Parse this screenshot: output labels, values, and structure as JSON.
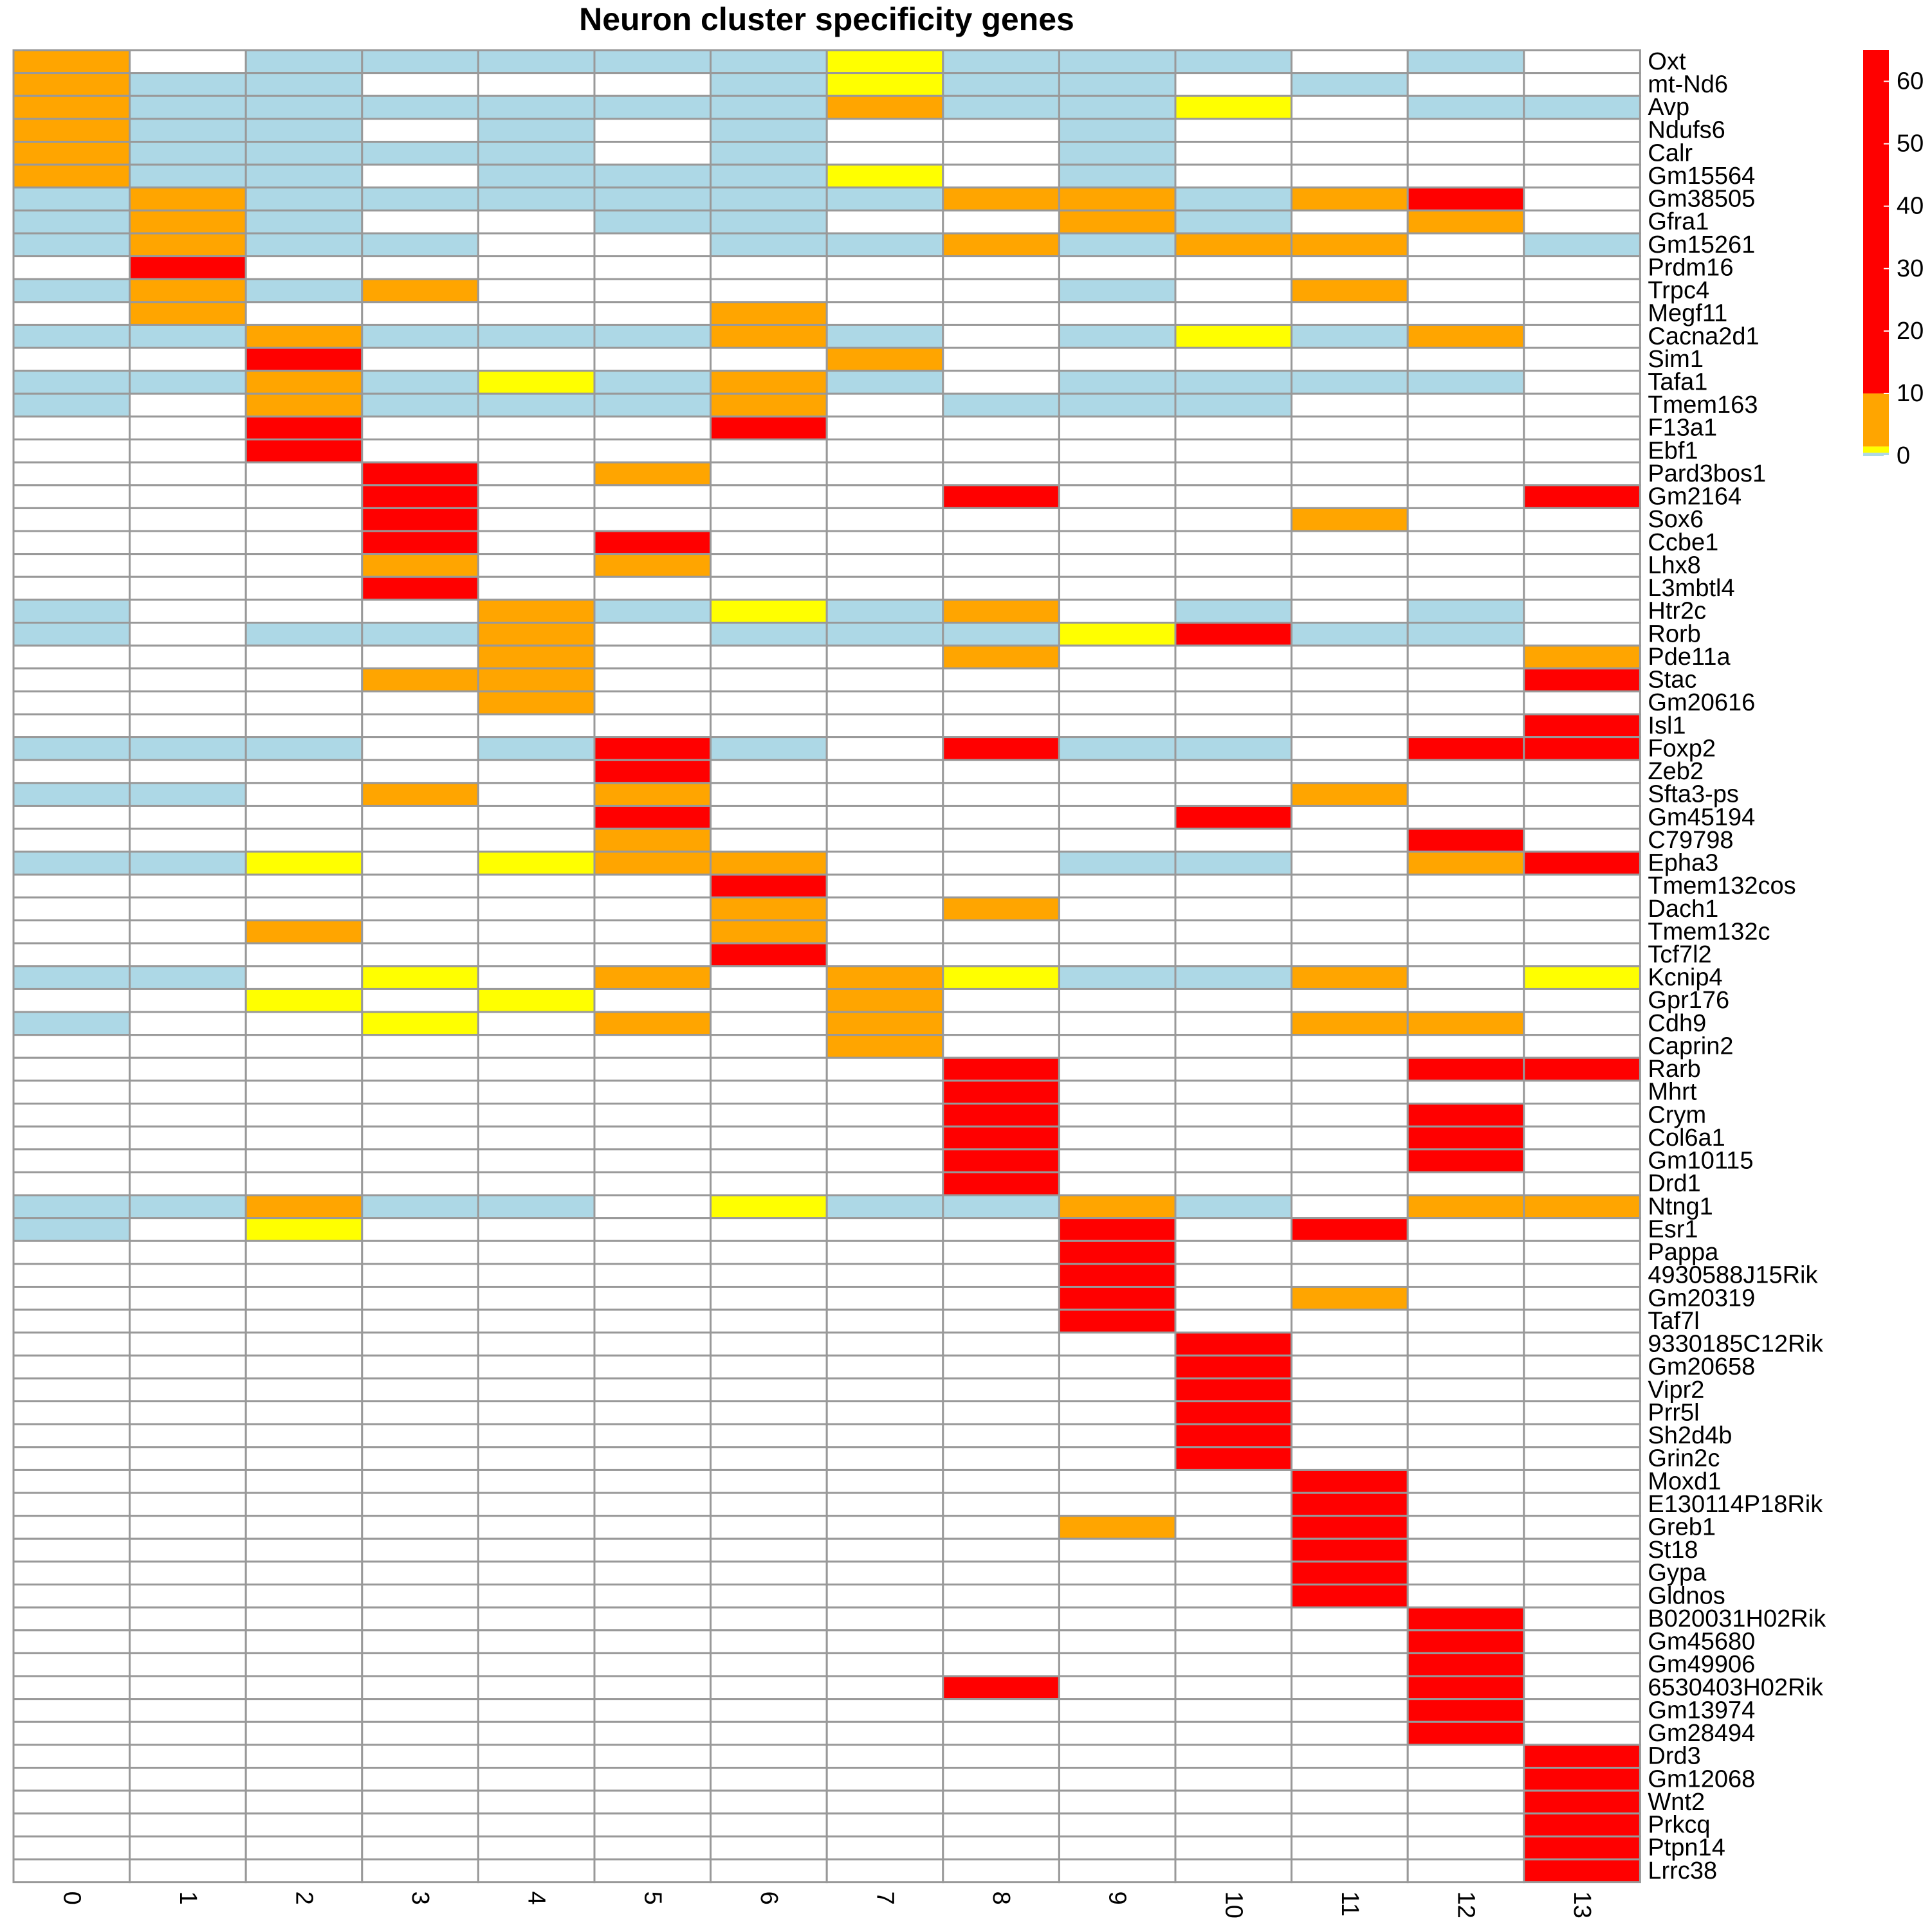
{
  "chart_data": {
    "type": "heatmap",
    "title": "Neuron cluster specificity genes",
    "columns": [
      "0",
      "1",
      "2",
      "3",
      "4",
      "5",
      "6",
      "7",
      "8",
      "9",
      "10",
      "11",
      "12",
      "13"
    ],
    "rows": [
      "Oxt",
      "mt-Nd6",
      "Avp",
      "Ndufs6",
      "Calr",
      "Gm15564",
      "Gm38505",
      "Gfra1",
      "Gm15261",
      "Prdm16",
      "Trpc4",
      "Megf11",
      "Cacna2d1",
      "Sim1",
      "Tafa1",
      "Tmem163",
      "F13a1",
      "Ebf1",
      "Pard3bos1",
      "Gm2164",
      "Sox6",
      "Ccbe1",
      "Lhx8",
      "L3mbtl4",
      "Htr2c",
      "Rorb",
      "Pde11a",
      "Stac",
      "Gm20616",
      "Isl1",
      "Foxp2",
      "Zeb2",
      "Sfta3-ps",
      "Gm45194",
      "C79798",
      "Epha3",
      "Tmem132cos",
      "Dach1",
      "Tmem132c",
      "Tcf7l2",
      "Kcnip4",
      "Gpr176",
      "Cdh9",
      "Caprin2",
      "Rarb",
      "Mhrt",
      "Crym",
      "Col6a1",
      "Gm10115",
      "Drd1",
      "Ntng1",
      "Esr1",
      "Pappa",
      "4930588J15Rik",
      "Gm20319",
      "Taf7l",
      "9330185C12Rik",
      "Gm20658",
      "Vipr2",
      "Prr5l",
      "Sh2d4b",
      "Grin2c",
      "Moxd1",
      "E130114P18Rik",
      "Greb1",
      "St18",
      "Gypa",
      "Gldnos",
      "B020031H02Rik",
      "Gm45680",
      "Gm49906",
      "6530403H02Rik",
      "Gm13974",
      "Gm28494",
      "Drd3",
      "Gm12068",
      "Wnt2",
      "Prkcq",
      "Ptpn14",
      "Lrrc38"
    ],
    "cell_codes_legend": {
      "w": "white (no value)",
      "b": "light blue (~0)",
      "y": "yellow (~1)",
      "o": "orange (1-10)",
      "r": "red (10-65)"
    },
    "cells": [
      "owbbbbbybbbwbw",
      "obbwwwbybbwbww",
      "obbbbbbobbywbb",
      "obbwbwbwwbwwww",
      "obbbbwbwwbwwww",
      "obbwbbbywbwwww",
      "bobbbbbboobord",
      "bobwwbbwwobwow",
      "bobbwwbboboowb",
      "wrwwwwwwwwwwww",
      "bobowwwwwbwoww",
      "wowwwwowwwwwww",
      "bbobbbobwbybow",
      "wwrwwwwowwwwww",
      "bbobybobwbbbbw",
      "bwobbbowbbbwww",
      "wwrwwwrwwwwwww",
      "wwrwwwwwwwwwww",
      "wwwrwowwwwwwww",
      "wwwrwwwwrwwwwr",
      "wwwrwwwwwwwoww",
      "wwwrwrwwwwwwww",
      "wwwowowwwwwwww",
      "wwwrwwwwwwwwww",
      "bwwwobybowbwbw",
      "bwbbowbbbyrbbw",
      "wwwwowwwowwwwo",
      "wwwoowwwwwwwwr",
      "wwwwowwwwwwwww",
      "wwwwwwwwwwwwwr",
      "bbbwbrbwrbbwrr",
      "wwwwwrwwwwwwww",
      "bbwowowwwwwoww",
      "wwwwwrwwwwrwww",
      "wwwwwowwwwwwrw",
      "bbywyoowwbbwor",
      "wwwwwwrwwwwwww",
      "wwwwwwowowwwww",
      "wwowwwowwwwwww",
      "wwwwwwrwwwwwww",
      "bbwywowoybbowy",
      "wwywywwowwwwww",
      "bwwywowowwwoow",
      "wwwwwwwowwwwww",
      "wwwwwwwwrwwwrr",
      "wwwwwwwwrwwwww",
      "wwwwwwwwrwwwrw",
      "wwwwwwwwrwwwrw",
      "wwwwwwwwrwwwrw",
      "wwwwwwwwrwwwww",
      "bbobbwybbobwoo",
      "bwywwwwwwrwrww",
      "wwwwwwwwwrwwww",
      "wwwwwwwwwrwwww",
      "wwwwwwwwwrwoww",
      "wwwwwwwwwrwwww",
      "wwwwwwwwwwrwww",
      "wwwwwwwwwwrwww",
      "wwwwwwwwwwrwww",
      "wwwwwwwwwwrwww",
      "wwwwwwwwwwrwww",
      "wwwwwwwwwwrwww",
      "wwwwwwwwwwwrww",
      "wwwwwwwwwwwrww",
      "wwwwwwwwwowrww",
      "wwwwwwwwwwwrww",
      "wwwwwwwwwwwrww",
      "wwwwwwwwwwwrww",
      "wwwwwwwwwwwwrw",
      "wwwwwwwwwwwwrw",
      "wwwwwwwwwwwwrw",
      "wwwwwwwwrwwwrw",
      "wwwwwwwwwwwwrw",
      "wwwwwwwwwwwwrw",
      "wwwwwwwwwwwwwr",
      "wwwwwwwwwwwwwr",
      "wwwwwwwwwwwwwr",
      "wwwwwwwwwwwwwr",
      "wwwwwwwwwwwwwr",
      "wwwwwwwwwwwwwr"
    ],
    "colorbar": {
      "ticks": [
        0,
        10,
        20,
        30,
        40,
        50,
        60
      ],
      "range": [
        0,
        65
      ],
      "bands": [
        {
          "from": 0,
          "to": 0.5,
          "color": "#add8e6"
        },
        {
          "from": 0.5,
          "to": 1.5,
          "color": "#ffff00"
        },
        {
          "from": 1.5,
          "to": 10,
          "color": "#ffa500"
        },
        {
          "from": 10,
          "to": 65,
          "color": "#ff0000"
        }
      ]
    },
    "colors": {
      "w": "#ffffff",
      "b": "#add8e6",
      "y": "#ffff00",
      "o": "#ffa500",
      "r": "#ff0000",
      "grid": "#999999"
    }
  }
}
